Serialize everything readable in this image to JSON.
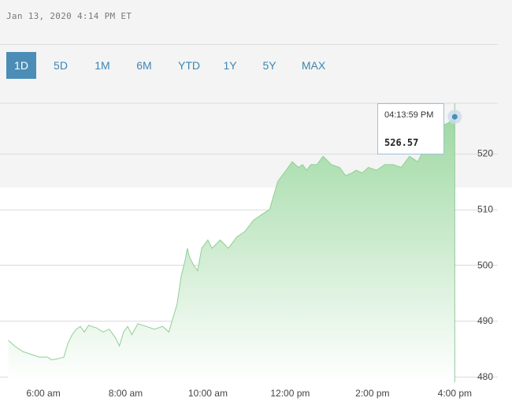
{
  "header": {
    "timestamp": "Jan 13, 2020 4:14 PM ET"
  },
  "range_tabs": [
    {
      "label": "1D",
      "active": true
    },
    {
      "label": "5D",
      "active": false
    },
    {
      "label": "1M",
      "active": false
    },
    {
      "label": "6M",
      "active": false
    },
    {
      "label": "YTD",
      "active": false
    },
    {
      "label": "1Y",
      "active": false
    },
    {
      "label": "5Y",
      "active": false
    },
    {
      "label": "MAX",
      "active": false
    }
  ],
  "tooltip": {
    "time": "04:13:59 PM",
    "value": "526.57"
  },
  "colors": {
    "accent": "#4b8db6",
    "tab_text": "#3b86b4",
    "area_top": "#9fd9a3",
    "area_bottom": "#ffffff",
    "line": "#8fcf94",
    "crosshair": "#90c99a"
  },
  "chart_data": {
    "type": "area",
    "title": "",
    "xlabel": "",
    "ylabel": "",
    "x_ticks": [
      "6:00 am",
      "8:00 am",
      "10:00 am",
      "12:00 pm",
      "2:00 pm",
      "4:00 pm"
    ],
    "x_tick_hours": [
      6,
      8,
      10,
      12,
      14,
      16
    ],
    "xlim": [
      5.1,
      17.2
    ],
    "y_ticks": [
      480,
      490,
      500,
      510,
      520
    ],
    "ylim": [
      479,
      529
    ],
    "grid": true,
    "series": [
      {
        "x": [
          5.15,
          5.3,
          5.5,
          5.7,
          5.9,
          6.1,
          6.2,
          6.35,
          6.5,
          6.6,
          6.7,
          6.8,
          6.9,
          7.0,
          7.1,
          7.3,
          7.45,
          7.6,
          7.75,
          7.85,
          7.95,
          8.05,
          8.15,
          8.3,
          8.5,
          8.7,
          8.9,
          9.05,
          9.25,
          9.35,
          9.45,
          9.5,
          9.55,
          9.65,
          9.75,
          9.85,
          10.0,
          10.1,
          10.3,
          10.5,
          10.7,
          10.9,
          11.1,
          11.3,
          11.5,
          11.7,
          11.9,
          12.05,
          12.2,
          12.3,
          12.4,
          12.5,
          12.65,
          12.8,
          13.0,
          13.2,
          13.35,
          13.5,
          13.6,
          13.75,
          13.9,
          14.1,
          14.3,
          14.5,
          14.7,
          14.9,
          15.1,
          15.3,
          15.5,
          15.7,
          15.85,
          15.95,
          16.0
        ],
        "y": [
          486.5,
          485.5,
          484.5,
          484.0,
          483.5,
          483.5,
          483.0,
          483.2,
          483.5,
          486.0,
          487.5,
          488.5,
          489.0,
          488.0,
          489.2,
          488.7,
          488.0,
          488.5,
          487.0,
          485.5,
          488.0,
          489.0,
          487.5,
          489.5,
          489.0,
          488.5,
          489.0,
          488.0,
          493.0,
          498.0,
          501.0,
          503.0,
          501.5,
          500.0,
          499.0,
          503.0,
          504.5,
          503.0,
          504.5,
          503.0,
          505.0,
          506.0,
          508.0,
          509.0,
          510.0,
          515.0,
          517.0,
          518.5,
          517.5,
          518.0,
          517.0,
          518.0,
          518.0,
          519.5,
          518.0,
          517.5,
          516.0,
          516.5,
          517.0,
          516.5,
          517.5,
          517.0,
          518.0,
          518.0,
          517.5,
          519.5,
          518.5,
          521.5,
          523.5,
          525.0,
          525.5,
          526.2,
          526.57
        ]
      }
    ]
  }
}
